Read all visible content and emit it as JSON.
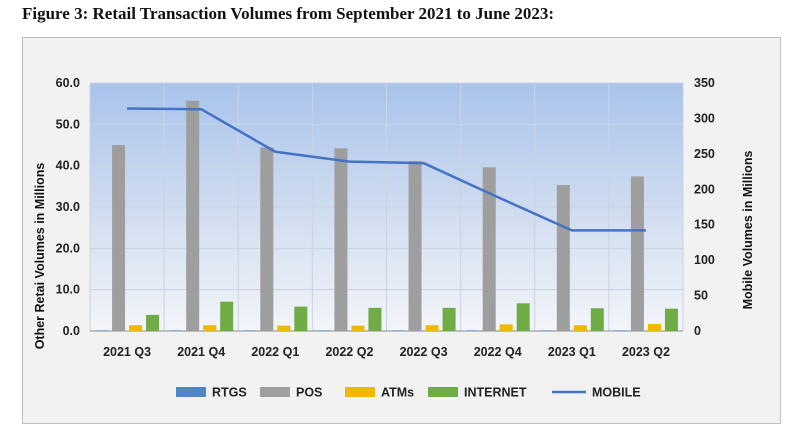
{
  "figure": {
    "title": "Figure 3: Retail Transaction Volumes from September 2021 to June 2023:"
  },
  "chart_data": {
    "type": "bar",
    "categories": [
      "2021 Q3",
      "2021 Q4",
      "2022 Q1",
      "2022 Q2",
      "2022 Q3",
      "2022 Q4",
      "2023 Q1",
      "2023 Q2"
    ],
    "series": [
      {
        "name": "RTGS",
        "axis": "left",
        "type": "bar",
        "color": "#4f86c6",
        "values": [
          0.05,
          0.05,
          0.05,
          0.05,
          0.05,
          0.05,
          0.05,
          0.05
        ]
      },
      {
        "name": "POS",
        "axis": "left",
        "type": "bar",
        "color": "#9e9e9e",
        "values": [
          45.0,
          55.7,
          44.4,
          44.2,
          41.1,
          39.6,
          35.3,
          37.4
        ]
      },
      {
        "name": "ATMs",
        "axis": "left",
        "type": "bar",
        "color": "#f2b705",
        "values": [
          1.4,
          1.4,
          1.3,
          1.3,
          1.4,
          1.6,
          1.4,
          1.7
        ]
      },
      {
        "name": "INTERNET",
        "axis": "left",
        "type": "bar",
        "color": "#6fac46",
        "values": [
          3.9,
          7.1,
          5.9,
          5.6,
          5.6,
          6.7,
          5.5,
          5.4
        ]
      },
      {
        "name": "MOBILE",
        "axis": "right",
        "type": "line",
        "color": "#4472c4",
        "values": [
          314,
          313,
          253,
          239,
          237,
          189,
          142,
          142
        ]
      }
    ],
    "ylabel": "Other Retai Volumes in  Millions",
    "y2label": "Mobile Volumes in Millions",
    "ylim": [
      0,
      60
    ],
    "y2lim": [
      0,
      350
    ],
    "yticks": [
      "0.0",
      "10.0",
      "20.0",
      "30.0",
      "40.0",
      "50.0",
      "60.0"
    ],
    "y2ticks": [
      "0",
      "50",
      "100",
      "150",
      "200",
      "250",
      "300",
      "350"
    ],
    "grid": true,
    "legend_position": "bottom"
  }
}
